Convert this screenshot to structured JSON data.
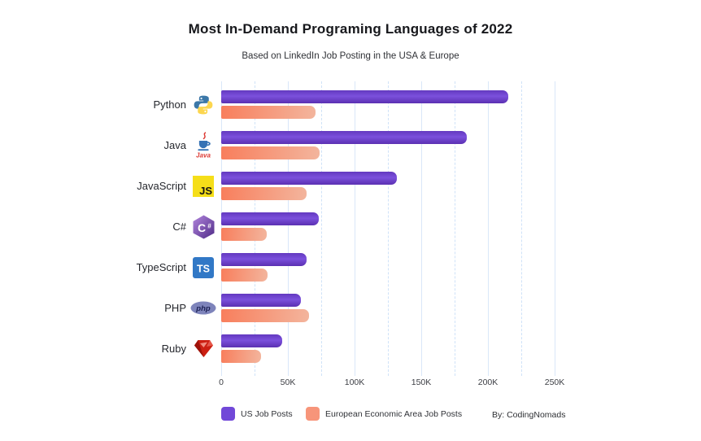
{
  "title": "Most In-Demand Programing Languages of 2022",
  "subtitle": "Based on LinkedIn Job Posting in the USA & Europe",
  "credit": "By: CodingNomads",
  "legend": [
    {
      "label": "US Job Posts",
      "color": "#7148d8"
    },
    {
      "label": "European Economic Area Job Posts",
      "color": "#f7957a"
    }
  ],
  "colors": {
    "us_bar": "#6d43d2",
    "eu_bar": "#f5906e",
    "grid_major": "#d9e7f9",
    "grid_minor": "#cfe2f8",
    "title_text": "#17181c"
  },
  "chart_data": {
    "type": "bar",
    "orientation": "horizontal",
    "title": "Most In-Demand Programing Languages of 2022",
    "subtitle": "Based on LinkedIn Job Posting in the USA & Europe",
    "categories": [
      "Python",
      "Java",
      "JavaScript",
      "C#",
      "TypeScript",
      "PHP",
      "Ruby"
    ],
    "category_icons": [
      "python-icon",
      "java-icon",
      "javascript-icon",
      "csharp-icon",
      "typescript-icon",
      "php-icon",
      "ruby-icon"
    ],
    "series": [
      {
        "name": "US Job Posts",
        "values": [
          215000,
          184000,
          132000,
          73000,
          64000,
          60000,
          46000
        ]
      },
      {
        "name": "European Economic Area Job Posts",
        "values": [
          71000,
          74000,
          64000,
          34000,
          35000,
          66000,
          30000
        ]
      }
    ],
    "xlim": [
      0,
      250000
    ],
    "x_tick_labels": [
      "0",
      "50K",
      "100K",
      "150K",
      "200K",
      "250K"
    ],
    "x_minor_ticks": [
      25000,
      75000,
      125000,
      175000,
      225000
    ],
    "grid": "vertical; solid lines at 50K multiples, dashed lines at 25K multiples",
    "legend_position": "bottom-left"
  }
}
